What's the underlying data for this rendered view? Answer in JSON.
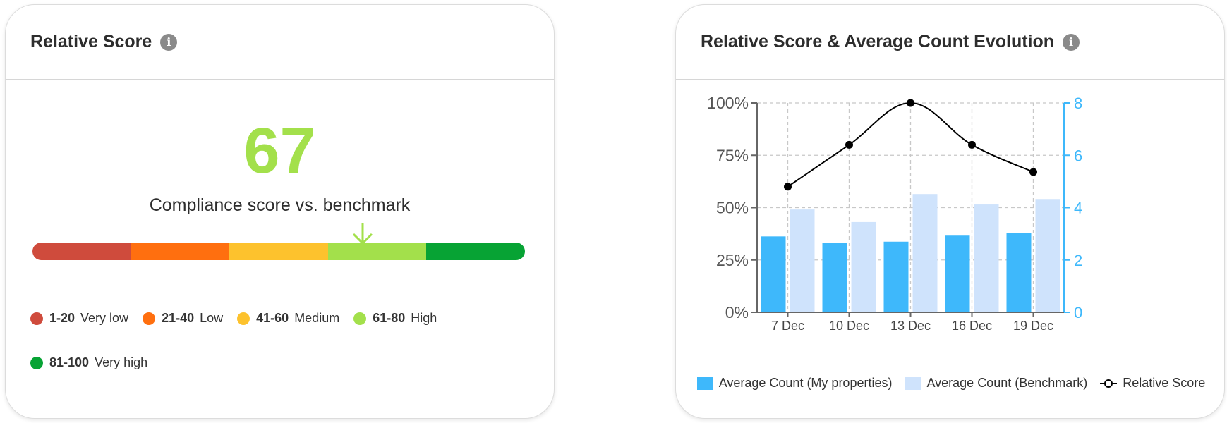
{
  "left_card": {
    "title": "Relative Score",
    "info_icon": "info-icon",
    "score": "67",
    "score_value": 67,
    "score_color": "#a3e04b",
    "caption": "Compliance score vs. benchmark",
    "segments": [
      {
        "range": "1-20",
        "label": "Very low",
        "color": "#cf4b3c"
      },
      {
        "range": "21-40",
        "label": "Low",
        "color": "#ff6f0f"
      },
      {
        "range": "41-60",
        "label": "Medium",
        "color": "#fdc22d"
      },
      {
        "range": "61-80",
        "label": "High",
        "color": "#a3e04b"
      },
      {
        "range": "81-100",
        "label": "Very high",
        "color": "#07a334"
      }
    ]
  },
  "right_card": {
    "title": "Relative Score & Average Count Evolution",
    "info_icon": "info-icon",
    "legend": [
      {
        "label": "Average Count (My properties)",
        "color": "#3eb8fb"
      },
      {
        "label": "Average Count (Benchmark)",
        "color": "#cfe3fc"
      },
      {
        "label": "Relative Score",
        "color": "#000000"
      }
    ]
  },
  "chart_data": {
    "type": "bar",
    "categories": [
      "7 Dec",
      "10 Dec",
      "13 Dec",
      "16 Dec",
      "19 Dec"
    ],
    "series": [
      {
        "name": "Average Count (My properties)",
        "type": "bar",
        "axis": "right",
        "color": "#3eb8fb",
        "values": [
          2.9,
          2.65,
          2.7,
          2.93,
          3.03
        ]
      },
      {
        "name": "Average Count (Benchmark)",
        "type": "bar",
        "axis": "right",
        "color": "#cfe3fc",
        "values": [
          3.93,
          3.45,
          4.52,
          4.12,
          4.33
        ]
      },
      {
        "name": "Relative Score",
        "type": "line",
        "axis": "left",
        "color": "#000000",
        "values": [
          60,
          80,
          100,
          80,
          67
        ]
      }
    ],
    "y_left": {
      "ticks": [
        "0%",
        "25%",
        "50%",
        "75%",
        "100%"
      ],
      "range": [
        0,
        100
      ]
    },
    "y_right": {
      "ticks": [
        "0",
        "2",
        "4",
        "6",
        "8"
      ],
      "range": [
        0,
        8
      ],
      "color": "#3eb8fb"
    },
    "grid": true,
    "legend_position": "bottom"
  }
}
